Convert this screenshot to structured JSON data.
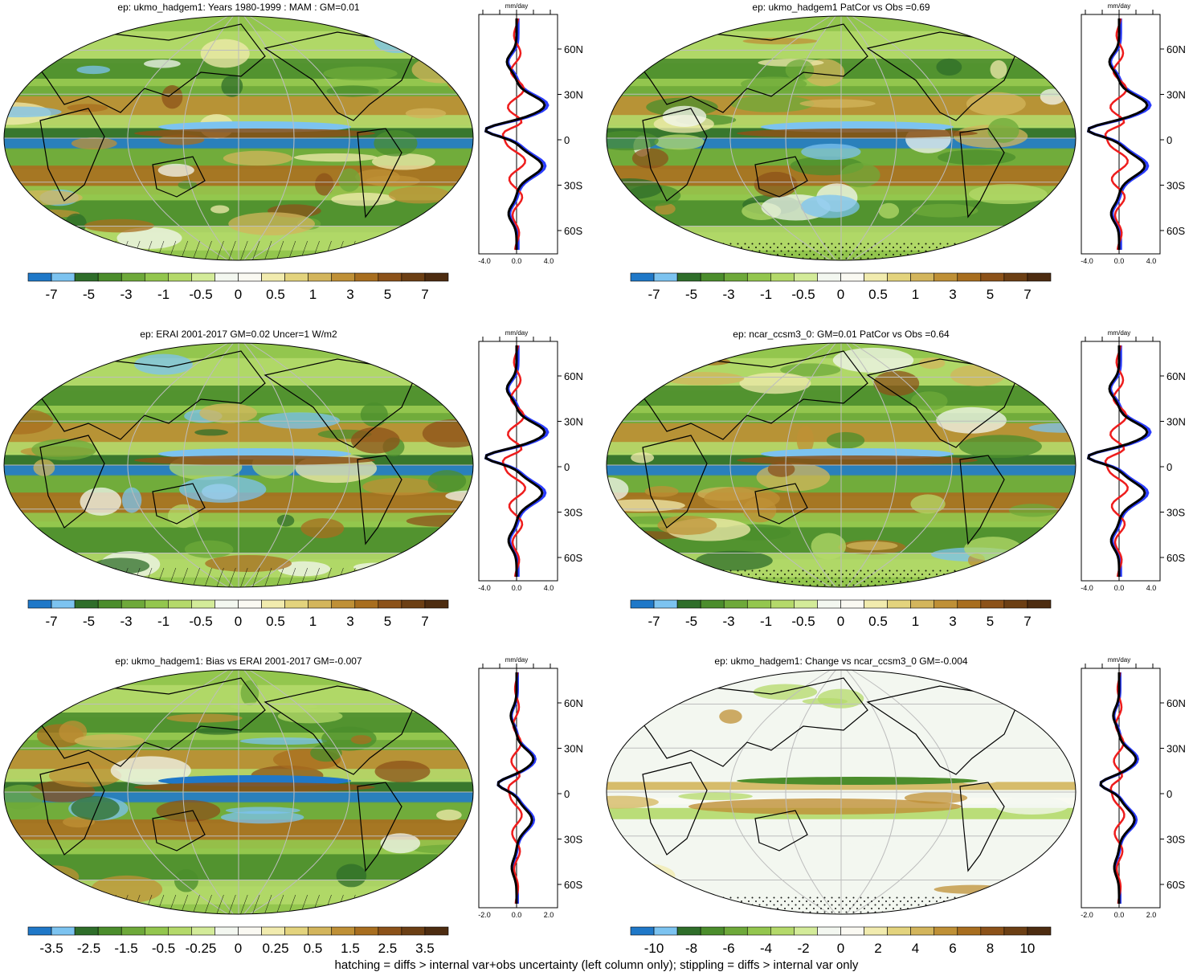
{
  "footer": "hatching = diffs > internal var+obs uncertainty (left column only); stippling = diffs > internal var only",
  "colorbar_colors": [
    "#1f78c8",
    "#7cc3f0",
    "#2f6e2a",
    "#4b8d2c",
    "#6ea93a",
    "#93c64e",
    "#b4d96a",
    "#d3eb99",
    "#f3f7f0",
    "#faf9f2",
    "#f1ebae",
    "#e3d37d",
    "#d3b55c",
    "#bf9036",
    "#a86e1f",
    "#8c5219",
    "#6c3f14",
    "#4d2c10"
  ],
  "profile_colors": {
    "model": "#2a3cff",
    "obs": "#ee1c1c",
    "diff": "#000000"
  },
  "lat_ticks": [
    "60N",
    "30N",
    "0",
    "30S",
    "60S"
  ],
  "panels": [
    {
      "id": "p1",
      "title": "ep: ukmo_hadgem1: Years 1980-1999 : MAM : GM=0.01",
      "colorbar_labels": [
        "-7",
        "-5",
        "-3",
        "-1",
        "-0.5",
        "0",
        "0.5",
        "1",
        "3",
        "5",
        "7"
      ],
      "profile_unit": "mm/day",
      "profile_xticks": [
        "-4.0",
        "0.0",
        "4.0"
      ],
      "hatching": "hatch"
    },
    {
      "id": "p2",
      "title": "ep: ukmo_hadgem1 PatCor vs Obs =0.69",
      "colorbar_labels": [
        "-7",
        "-5",
        "-3",
        "-1",
        "-0.5",
        "0",
        "0.5",
        "1",
        "3",
        "5",
        "7"
      ],
      "profile_unit": "mm/day",
      "profile_xticks": [
        "-4.0",
        "0.0",
        "4.0"
      ],
      "hatching": "stipple"
    },
    {
      "id": "p3",
      "title": "ep: ERAI 2001-2017 GM=0.02 Uncer=1 W/m2",
      "colorbar_labels": [
        "-7",
        "-5",
        "-3",
        "-1",
        "-0.5",
        "0",
        "0.5",
        "1",
        "3",
        "5",
        "7"
      ],
      "profile_unit": "mm/day",
      "profile_xticks": [
        "-4.0",
        "0.0",
        "4.0"
      ],
      "hatching": "hatch"
    },
    {
      "id": "p4",
      "title": "ep: ncar_ccsm3_0: GM=0.01 PatCor vs Obs =0.64",
      "colorbar_labels": [
        "-7",
        "-5",
        "-3",
        "-1",
        "-0.5",
        "0",
        "0.5",
        "1",
        "3",
        "5",
        "7"
      ],
      "profile_unit": "mm/day",
      "profile_xticks": [
        "-4.0",
        "0.0",
        "4.0"
      ],
      "hatching": "stipple"
    },
    {
      "id": "p5",
      "title": "ep: ukmo_hadgem1: Bias vs ERAI 2001-2017 GM=-0.007",
      "colorbar_labels": [
        "-3.5",
        "-2.5",
        "-1.5",
        "-0.5",
        "-0.25",
        "0",
        "0.25",
        "0.5",
        "1.5",
        "2.5",
        "3.5"
      ],
      "profile_unit": "mm/day",
      "profile_xticks": [
        "-2.0",
        "0.0",
        "2.0"
      ],
      "hatching": "hatch"
    },
    {
      "id": "p6",
      "title": "ep: ukmo_hadgem1: Change vs ncar_ccsm3_0 GM=-0.004",
      "colorbar_labels": [
        "-10",
        "-8",
        "-6",
        "-4",
        "-2",
        "0",
        "2",
        "4",
        "6",
        "8",
        "10"
      ],
      "profile_unit": "mm/day",
      "profile_xticks": [
        "-2.0",
        "0.0",
        "2.0"
      ],
      "hatching": "stipple"
    }
  ]
}
